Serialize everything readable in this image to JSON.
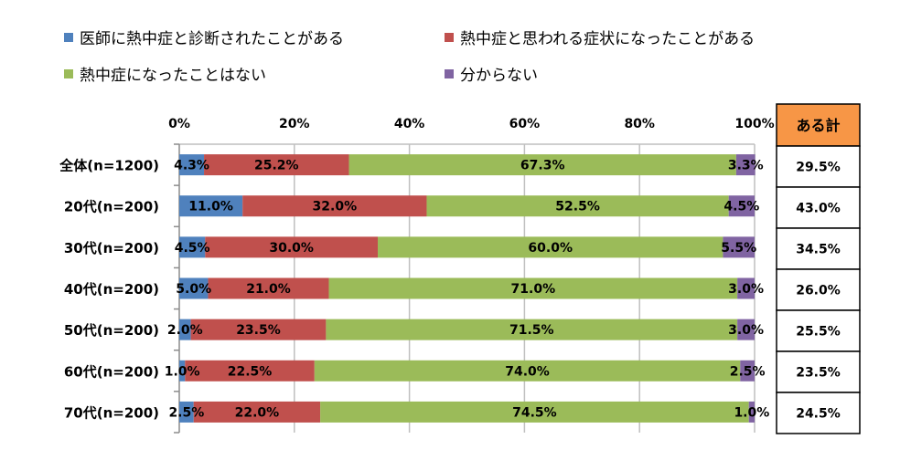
{
  "chart_data": {
    "type": "bar",
    "orientation": "horizontal",
    "stacked": "percent",
    "title": "",
    "xlabel": "",
    "ylabel": "",
    "xlim": [
      0,
      100
    ],
    "x_ticks": [
      "0%",
      "20%",
      "40%",
      "60%",
      "80%",
      "100%"
    ],
    "x_tick_values": [
      0,
      20,
      40,
      60,
      80,
      100
    ],
    "grid": true,
    "legend_position": "top",
    "categories": [
      "全体(n=1200)",
      "20代(n=200)",
      "30代(n=200)",
      "40代(n=200)",
      "50代(n=200)",
      "60代(n=200)",
      "70代(n=200)"
    ],
    "series": [
      {
        "name": "医師に熱中症と診断されたことがある",
        "color": "#4f81bd",
        "values": [
          4.3,
          11.0,
          4.5,
          5.0,
          2.0,
          1.0,
          2.5
        ],
        "labels": [
          "4.3%",
          "11.0%",
          "4.5%",
          "5.0%",
          "2.0%",
          "1.0%",
          "2.5%"
        ]
      },
      {
        "name": "熱中症と思われる症状になったことがある",
        "color": "#c0504d",
        "values": [
          25.2,
          32.0,
          30.0,
          21.0,
          23.5,
          22.5,
          22.0
        ],
        "labels": [
          "25.2%",
          "32.0%",
          "30.0%",
          "21.0%",
          "23.5%",
          "22.5%",
          "22.0%"
        ]
      },
      {
        "name": "熱中症になったことはない",
        "color": "#9bbb59",
        "values": [
          67.3,
          52.5,
          60.0,
          71.0,
          71.5,
          74.0,
          74.5
        ],
        "labels": [
          "67.3%",
          "52.5%",
          "60.0%",
          "71.0%",
          "71.5%",
          "74.0%",
          "74.5%"
        ]
      },
      {
        "name": "分からない",
        "color": "#8064a2",
        "values": [
          3.3,
          4.5,
          5.5,
          3.0,
          3.0,
          2.5,
          1.0
        ],
        "labels": [
          "3.3%",
          "4.5%",
          "5.5%",
          "3.0%",
          "3.0%",
          "2.5%",
          "1.0%"
        ]
      }
    ],
    "side_table": {
      "header": "ある計",
      "header_color": "#f79646",
      "values": [
        "29.5%",
        "43.0%",
        "34.5%",
        "26.0%",
        "25.5%",
        "23.5%",
        "24.5%"
      ]
    }
  }
}
